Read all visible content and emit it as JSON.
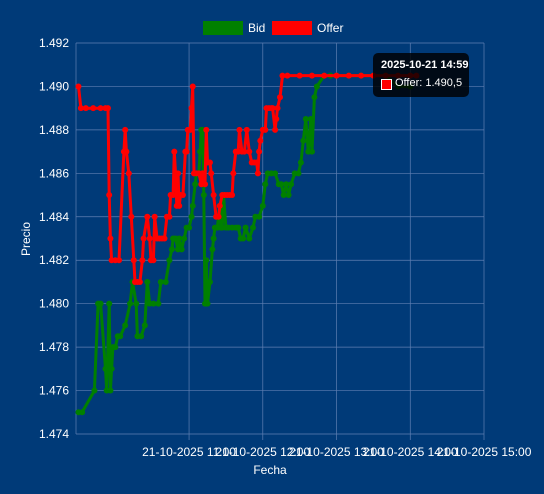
{
  "colors": {
    "background": "#003a78",
    "grid": "#5f7fb2",
    "text": "#ffffff",
    "bid": "#008000",
    "offer": "#ff0000"
  },
  "tooltip": {
    "title": "2025-10-21 14:59",
    "series": "Offer",
    "value": "1.490,5",
    "body": "Offer: 1.490,5"
  },
  "chart_data": {
    "type": "line",
    "xlabel": "Fecha",
    "ylabel": "Precio",
    "legend_position": "top-center",
    "grid": true,
    "x_unit": "minutes after 21-10-2025 10:00",
    "xlim": [
      -32,
      300
    ],
    "ylim": [
      1.474,
      1.492
    ],
    "yticks": [
      1.474,
      1.476,
      1.478,
      1.48,
      1.482,
      1.484,
      1.486,
      1.488,
      1.49,
      1.492
    ],
    "ytick_labels": [
      "1.474",
      "1.476",
      "1.478",
      "1.480",
      "1.482",
      "1.484",
      "1.486",
      "1.488",
      "1.490",
      "1.492"
    ],
    "xticks": [
      60,
      120,
      180,
      240,
      300
    ],
    "xtick_labels": [
      "21-10-2025 11:00",
      "21-10-2025 12:00",
      "21-10-2025 13:00",
      "21-10-2025 14:00",
      "21-10-2025 15:00"
    ],
    "series": [
      {
        "name": "Bid",
        "color": "#008000",
        "points": [
          [
            -30,
            1.475
          ],
          [
            -27,
            1.475
          ],
          [
            -17,
            1.476
          ],
          [
            -14,
            1.48
          ],
          [
            -12,
            1.48
          ],
          [
            -8,
            1.477
          ],
          [
            -7,
            1.476
          ],
          [
            -5,
            1.48
          ],
          [
            -4,
            1.476
          ],
          [
            -3,
            1.477
          ],
          [
            -2,
            1.478
          ],
          [
            0,
            1.478
          ],
          [
            2,
            1.4785
          ],
          [
            4,
            1.4785
          ],
          [
            8,
            1.479
          ],
          [
            12,
            1.48
          ],
          [
            14,
            1.481
          ],
          [
            17,
            1.48
          ],
          [
            18,
            1.4785
          ],
          [
            21,
            1.4785
          ],
          [
            24,
            1.479
          ],
          [
            26,
            1.481
          ],
          [
            28,
            1.48
          ],
          [
            31,
            1.48
          ],
          [
            35,
            1.48
          ],
          [
            37,
            1.481
          ],
          [
            41,
            1.481
          ],
          [
            44,
            1.482
          ],
          [
            46,
            1.4825
          ],
          [
            47,
            1.483
          ],
          [
            49,
            1.483
          ],
          [
            51,
            1.4825
          ],
          [
            52,
            1.483
          ],
          [
            54,
            1.4825
          ],
          [
            56,
            1.483
          ],
          [
            58,
            1.4835
          ],
          [
            60,
            1.4835
          ],
          [
            62,
            1.484
          ],
          [
            63,
            1.4845
          ],
          [
            65,
            1.4855
          ],
          [
            66,
            1.486
          ],
          [
            67,
            1.486
          ],
          [
            68,
            1.486
          ],
          [
            69,
            1.487
          ],
          [
            70,
            1.488
          ],
          [
            71,
            1.488
          ],
          [
            72,
            1.485
          ],
          [
            73,
            1.48
          ],
          [
            74,
            1.482
          ],
          [
            75,
            1.48
          ],
          [
            77,
            1.481
          ],
          [
            79,
            1.4825
          ],
          [
            80,
            1.483
          ],
          [
            81,
            1.4835
          ],
          [
            83,
            1.4835
          ],
          [
            85,
            1.4845
          ],
          [
            86,
            1.4835
          ],
          [
            87,
            1.4835
          ],
          [
            88,
            1.485
          ],
          [
            90,
            1.4835
          ],
          [
            92,
            1.4835
          ],
          [
            95,
            1.4835
          ],
          [
            98,
            1.4835
          ],
          [
            100,
            1.4835
          ],
          [
            102,
            1.483
          ],
          [
            104,
            1.483
          ],
          [
            106,
            1.4835
          ],
          [
            109,
            1.483
          ],
          [
            112,
            1.4835
          ],
          [
            114,
            1.484
          ],
          [
            117,
            1.484
          ],
          [
            120,
            1.4845
          ],
          [
            122,
            1.4855
          ],
          [
            124,
            1.486
          ],
          [
            127,
            1.486
          ],
          [
            130,
            1.486
          ],
          [
            133,
            1.4855
          ],
          [
            135,
            1.4855
          ],
          [
            137,
            1.485
          ],
          [
            139,
            1.4855
          ],
          [
            141,
            1.485
          ],
          [
            143,
            1.4855
          ],
          [
            146,
            1.486
          ],
          [
            149,
            1.486
          ],
          [
            151,
            1.4865
          ],
          [
            153,
            1.4875
          ],
          [
            155,
            1.4885
          ],
          [
            157,
            1.487
          ],
          [
            159,
            1.4885
          ],
          [
            160,
            1.487
          ],
          [
            162,
            1.4895
          ],
          [
            164,
            1.49
          ],
          [
            170,
            1.4905
          ],
          [
            175,
            1.4905
          ],
          [
            180,
            1.4905
          ],
          [
            190,
            1.4905
          ],
          [
            200,
            1.4905
          ],
          [
            210,
            1.4905
          ],
          [
            220,
            1.4905
          ],
          [
            230,
            1.49
          ],
          [
            240,
            1.49
          ]
        ]
      },
      {
        "name": "Offer",
        "color": "#ff0000",
        "points": [
          [
            -30,
            1.49
          ],
          [
            -28,
            1.489
          ],
          [
            -24,
            1.489
          ],
          [
            -18,
            1.489
          ],
          [
            -12,
            1.489
          ],
          [
            -8,
            1.489
          ],
          [
            -6,
            1.489
          ],
          [
            -5,
            1.485
          ],
          [
            -4,
            1.483
          ],
          [
            -3,
            1.482
          ],
          [
            0,
            1.482
          ],
          [
            3,
            1.482
          ],
          [
            7,
            1.487
          ],
          [
            8,
            1.488
          ],
          [
            9,
            1.487
          ],
          [
            11,
            1.486
          ],
          [
            13,
            1.484
          ],
          [
            15,
            1.482
          ],
          [
            16,
            1.481
          ],
          [
            18,
            1.481
          ],
          [
            20,
            1.481
          ],
          [
            22,
            1.482
          ],
          [
            23,
            1.483
          ],
          [
            26,
            1.484
          ],
          [
            28,
            1.483
          ],
          [
            29,
            1.482
          ],
          [
            31,
            1.482
          ],
          [
            32,
            1.484
          ],
          [
            34,
            1.483
          ],
          [
            36,
            1.483
          ],
          [
            38,
            1.483
          ],
          [
            40,
            1.483
          ],
          [
            42,
            1.484
          ],
          [
            44,
            1.484
          ],
          [
            45,
            1.485
          ],
          [
            47,
            1.485
          ],
          [
            48,
            1.487
          ],
          [
            49,
            1.486
          ],
          [
            50,
            1.4845
          ],
          [
            51,
            1.486
          ],
          [
            52,
            1.4845
          ],
          [
            53,
            1.485
          ],
          [
            55,
            1.485
          ],
          [
            57,
            1.487
          ],
          [
            58,
            1.487
          ],
          [
            59,
            1.488
          ],
          [
            61,
            1.488
          ],
          [
            62,
            1.489
          ],
          [
            63,
            1.49
          ],
          [
            64,
            1.486
          ],
          [
            66,
            1.486
          ],
          [
            68,
            1.486
          ],
          [
            70,
            1.4855
          ],
          [
            71,
            1.486
          ],
          [
            73,
            1.4855
          ],
          [
            74,
            1.488
          ],
          [
            75,
            1.4865
          ],
          [
            77,
            1.4865
          ],
          [
            78,
            1.486
          ],
          [
            80,
            1.485
          ],
          [
            82,
            1.484
          ],
          [
            84,
            1.484
          ],
          [
            85,
            1.4845
          ],
          [
            87,
            1.485
          ],
          [
            89,
            1.485
          ],
          [
            91,
            1.485
          ],
          [
            93,
            1.485
          ],
          [
            95,
            1.485
          ],
          [
            96,
            1.486
          ],
          [
            98,
            1.487
          ],
          [
            100,
            1.487
          ],
          [
            101,
            1.488
          ],
          [
            103,
            1.487
          ],
          [
            105,
            1.487
          ],
          [
            107,
            1.488
          ],
          [
            109,
            1.487
          ],
          [
            111,
            1.4865
          ],
          [
            113,
            1.4865
          ],
          [
            115,
            1.4865
          ],
          [
            116,
            1.486
          ],
          [
            117,
            1.487
          ],
          [
            118,
            1.4875
          ],
          [
            120,
            1.488
          ],
          [
            122,
            1.488
          ],
          [
            123,
            1.489
          ],
          [
            125,
            1.489
          ],
          [
            127,
            1.489
          ],
          [
            128,
            1.489
          ],
          [
            130,
            1.488
          ],
          [
            131,
            1.4885
          ],
          [
            132,
            1.489
          ],
          [
            134,
            1.4895
          ],
          [
            136,
            1.4905
          ],
          [
            140,
            1.4905
          ],
          [
            150,
            1.4905
          ],
          [
            160,
            1.4905
          ],
          [
            170,
            1.4905
          ],
          [
            180,
            1.4905
          ],
          [
            190,
            1.4905
          ],
          [
            200,
            1.4905
          ],
          [
            210,
            1.4905
          ],
          [
            220,
            1.4905
          ],
          [
            230,
            1.4905
          ],
          [
            240,
            1.4905
          ],
          [
            245,
            1.4905
          ]
        ]
      }
    ]
  }
}
